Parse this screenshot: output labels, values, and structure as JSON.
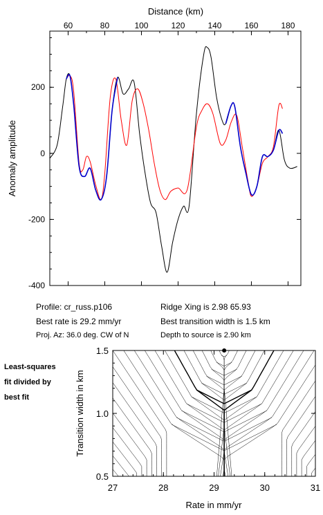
{
  "info": {
    "profile": "Profile: cr_russ.p106",
    "best_rate": "Best rate is 29.2 mm/yr",
    "proj_az": "Proj. Az: 36.0 deg. CW of N",
    "ridge_xing": "Ridge Xing is 2.98 65.93",
    "best_width": "Best transition width is 1.5 km",
    "depth": "Depth to source is   2.90 km"
  },
  "side_label": {
    "line1": "Least-squares",
    "line2": "fit divided by",
    "line3": "best fit"
  },
  "colors": {
    "observed": "#000000",
    "model": "#ff0000",
    "fit_window": "#0000cc",
    "contours": "#000000"
  },
  "chart_data": [
    {
      "type": "line",
      "xlabel": "Distance (km)",
      "ylabel": "Anomaly amplitude",
      "xlim": [
        50,
        187
      ],
      "ylim": [
        -400,
        370
      ],
      "xticks": [
        60,
        80,
        100,
        120,
        140,
        160,
        180
      ],
      "yticks": [
        -400,
        -200,
        0,
        200
      ],
      "series": [
        {
          "color": "#000000",
          "x": [
            50,
            54,
            57,
            59,
            61,
            63,
            66,
            69,
            72,
            75,
            78,
            81,
            84,
            87,
            90,
            93,
            96,
            99,
            102,
            105,
            108,
            111,
            114,
            117,
            120,
            123,
            126,
            130,
            134,
            136,
            138,
            141,
            144,
            146,
            149,
            151,
            154,
            157,
            160,
            163,
            166,
            169,
            172,
            175,
            178,
            181,
            185
          ],
          "y": [
            -15,
            25,
            140,
            225,
            235,
            150,
            -40,
            -70,
            -45,
            -110,
            -140,
            -70,
            130,
            230,
            180,
            195,
            215,
            60,
            -60,
            -150,
            -180,
            -280,
            -360,
            -270,
            -200,
            -160,
            -160,
            120,
            300,
            320,
            290,
            170,
            100,
            90,
            145,
            140,
            20,
            -60,
            -125,
            -100,
            -10,
            -10,
            10,
            70,
            -20,
            -45,
            -40
          ]
        },
        {
          "color": "#ff0000",
          "x": [
            59,
            61,
            63,
            66,
            68,
            70,
            72,
            75,
            78,
            80,
            83,
            86,
            89,
            92,
            95,
            98,
            101,
            104,
            107,
            110,
            113,
            116,
            120,
            125,
            130,
            133,
            136,
            139,
            143,
            146,
            149,
            152,
            155,
            158,
            160,
            163,
            166,
            169,
            172,
            175,
            177
          ],
          "y": [
            225,
            235,
            190,
            -30,
            -50,
            -10,
            -25,
            -95,
            -140,
            -60,
            170,
            225,
            100,
            25,
            160,
            195,
            150,
            70,
            -30,
            -110,
            -140,
            -115,
            -105,
            -110,
            80,
            130,
            150,
            120,
            30,
            40,
            95,
            115,
            20,
            -80,
            -130,
            -100,
            -30,
            -10,
            20,
            145,
            135
          ]
        },
        {
          "color": "#0000cc",
          "x": [
            59,
            61,
            63,
            66,
            69,
            72,
            75,
            78,
            81,
            84,
            87
          ],
          "y": [
            225,
            235,
            150,
            -40,
            -70,
            -45,
            -110,
            -140,
            -70,
            130,
            230
          ]
        },
        {
          "color": "#0000cc",
          "x": [
            146,
            149,
            151,
            154,
            157,
            160,
            163,
            166,
            169,
            172,
            175,
            177
          ],
          "y": [
            90,
            145,
            140,
            20,
            -60,
            -125,
            -100,
            -10,
            -10,
            10,
            70,
            60
          ]
        }
      ]
    },
    {
      "type": "contour",
      "xlabel": "Rate in mm/yr",
      "ylabel": "Transition width in km",
      "xlim": [
        27,
        31
      ],
      "ylim": [
        0.5,
        1.5
      ],
      "xticks": [
        27,
        28,
        29,
        30,
        31
      ],
      "yticks": [
        0.5,
        1.0,
        1.5
      ],
      "best_fit": {
        "x": 29.2,
        "y": 1.5
      }
    }
  ]
}
